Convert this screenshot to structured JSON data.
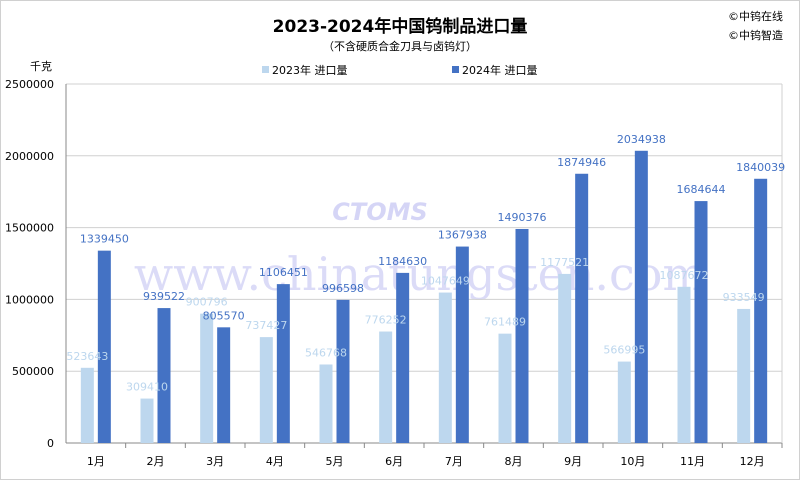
{
  "chart_data": {
    "type": "bar",
    "title": "2023-2024年中国钨制品进口量",
    "subtitle": "（不含硬质合金刀具与卤钨灯）",
    "ylabel": "千克",
    "xlabel": "",
    "ylim": [
      0,
      2500000
    ],
    "yticks": [
      0,
      500000,
      1000000,
      1500000,
      2000000,
      2500000
    ],
    "grid": true,
    "legend_position": "top",
    "categories": [
      "1月",
      "2月",
      "3月",
      "4月",
      "5月",
      "6月",
      "7月",
      "8月",
      "9月",
      "10月",
      "11月",
      "12月"
    ],
    "series": [
      {
        "name": "2023年 进口量",
        "color": "#bdd7ee",
        "values": [
          523643,
          309410,
          900796,
          737427,
          546768,
          776252,
          1047649,
          761489,
          1177521,
          566995,
          1087672,
          933549
        ]
      },
      {
        "name": "2024年 进口量",
        "color": "#4472c4",
        "values": [
          1339450,
          939522,
          805570,
          1106451,
          996598,
          1184630,
          1367938,
          1490376,
          1874946,
          2034938,
          1684644,
          1840039
        ]
      }
    ]
  },
  "credits": [
    "©中钨在线",
    "©中钨智造"
  ],
  "watermark": {
    "text": "www.chinatungsten.com",
    "logo": "CTOMS"
  }
}
